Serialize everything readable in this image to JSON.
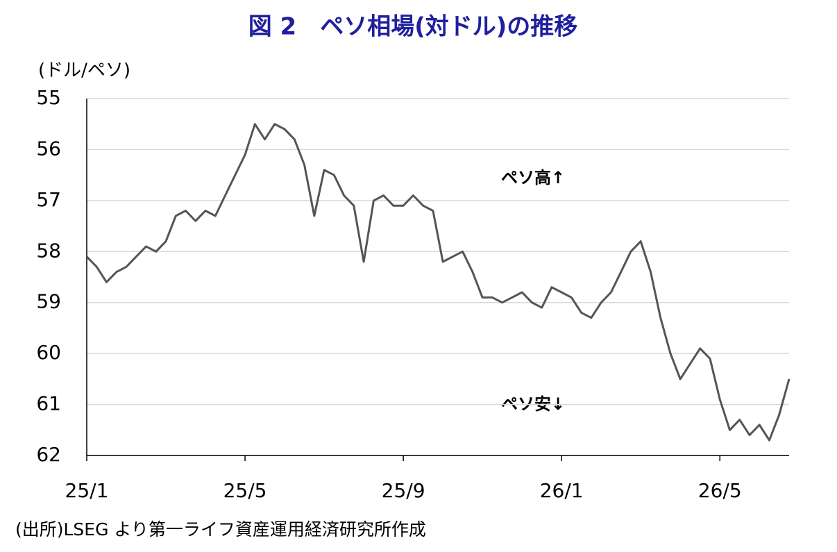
{
  "chart_data": {
    "type": "line",
    "title": "図 2　ペソ相場(対ドル)の推移",
    "y_label": "(ドル/ペソ)",
    "source": "(出所)LSEG より第一ライフ資産運用経済研究所作成",
    "annotations": [
      "ペソ高↑",
      "ペソ安↓"
    ],
    "y_inverted": true,
    "grid": true,
    "color": "#555555",
    "xlim": [
      0,
      17.75
    ],
    "xticks": [
      {
        "value": 0,
        "label": "25/1"
      },
      {
        "value": 4,
        "label": "25/5"
      },
      {
        "value": 8,
        "label": "25/9"
      },
      {
        "value": 12,
        "label": "26/1"
      },
      {
        "value": 16,
        "label": "26/5"
      }
    ],
    "ylim": [
      55,
      62
    ],
    "yticks": [
      55,
      56,
      57,
      58,
      59,
      60,
      61,
      62
    ],
    "x": [
      0,
      0.25,
      0.5,
      0.75,
      1,
      1.25,
      1.5,
      1.75,
      2,
      2.25,
      2.5,
      2.75,
      3,
      3.25,
      3.5,
      3.75,
      4,
      4.25,
      4.5,
      4.75,
      5,
      5.25,
      5.5,
      5.75,
      6,
      6.25,
      6.5,
      6.75,
      7,
      7.25,
      7.5,
      7.75,
      8,
      8.25,
      8.5,
      8.75,
      9,
      9.25,
      9.5,
      9.75,
      10,
      10.25,
      10.5,
      10.75,
      11,
      11.25,
      11.5,
      11.75,
      12,
      12.25,
      12.5,
      12.75,
      13,
      13.25,
      13.5,
      13.75,
      14,
      14.25,
      14.5,
      14.75,
      15,
      15.25,
      15.5,
      15.75,
      16,
      16.25,
      16.5,
      16.75,
      17,
      17.25,
      17.5,
      17.75
    ],
    "values": [
      58.1,
      58.3,
      58.6,
      58.4,
      58.3,
      58.1,
      57.9,
      58.0,
      57.8,
      57.3,
      57.2,
      57.4,
      57.2,
      57.3,
      56.9,
      56.5,
      56.1,
      55.5,
      55.8,
      55.5,
      55.6,
      55.8,
      56.3,
      57.3,
      56.4,
      56.5,
      56.9,
      57.1,
      58.2,
      57.0,
      56.9,
      57.1,
      57.1,
      56.9,
      57.1,
      57.2,
      58.2,
      58.1,
      58.0,
      58.4,
      58.9,
      58.9,
      59.0,
      58.9,
      58.8,
      59.0,
      59.1,
      58.7,
      58.8,
      58.9,
      59.2,
      59.3,
      59.0,
      58.8,
      58.4,
      58.0,
      57.8,
      58.4,
      59.3,
      60.0,
      60.5,
      60.2,
      59.9,
      60.1,
      60.9,
      61.5,
      61.3,
      61.6,
      61.4,
      61.7,
      61.2,
      60.5
    ]
  }
}
